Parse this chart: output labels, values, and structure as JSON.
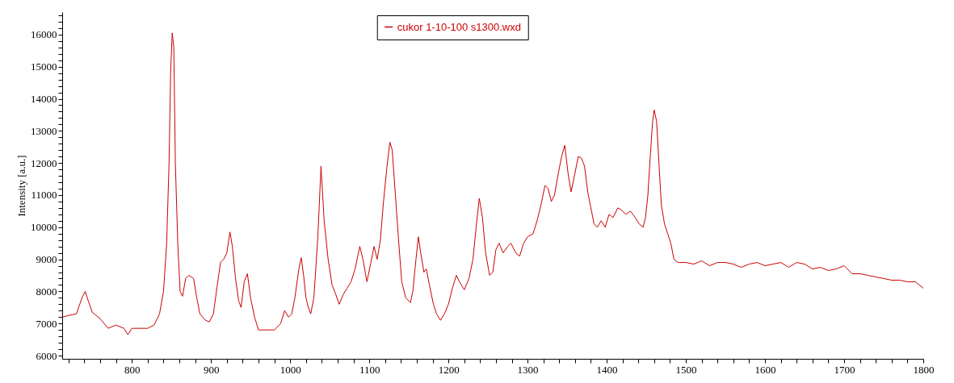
{
  "chart_data": {
    "type": "line",
    "ylabel": "Intensity [a.u.]",
    "grid": false,
    "legend": "top",
    "marker": "none",
    "line_style": "solid",
    "xlim": [
      712,
      1800
    ],
    "ylim": [
      5900,
      16700
    ],
    "xticks": [
      800,
      900,
      1000,
      1100,
      1200,
      1300,
      1400,
      1500,
      1600,
      1700,
      1800,
      {
        "value": 720,
        "label": null
      },
      {
        "value": 740,
        "label": null
      },
      {
        "value": 760,
        "label": null
      },
      {
        "value": 780,
        "label": null
      },
      {
        "value": 820,
        "label": null
      },
      {
        "value": 840,
        "label": null
      },
      {
        "value": 860,
        "label": null
      },
      {
        "value": 880,
        "label": null
      },
      {
        "value": 920,
        "label": null
      },
      {
        "value": 940,
        "label": null
      },
      {
        "value": 960,
        "label": null
      },
      {
        "value": 980,
        "label": null
      },
      {
        "value": 1020,
        "label": null
      },
      {
        "value": 1040,
        "label": null
      },
      {
        "value": 1060,
        "label": null
      },
      {
        "value": 1080,
        "label": null
      },
      {
        "value": 1120,
        "label": null
      },
      {
        "value": 1140,
        "label": null
      },
      {
        "value": 1160,
        "label": null
      },
      {
        "value": 1180,
        "label": null
      },
      {
        "value": 1220,
        "label": null
      },
      {
        "value": 1240,
        "label": null
      },
      {
        "value": 1260,
        "label": null
      },
      {
        "value": 1280,
        "label": null
      },
      {
        "value": 1320,
        "label": null
      },
      {
        "value": 1340,
        "label": null
      },
      {
        "value": 1360,
        "label": null
      },
      {
        "value": 1380,
        "label": null
      },
      {
        "value": 1420,
        "label": null
      },
      {
        "value": 1440,
        "label": null
      },
      {
        "value": 1460,
        "label": null
      },
      {
        "value": 1480,
        "label": null
      },
      {
        "value": 1520,
        "label": null
      },
      {
        "value": 1540,
        "label": null
      },
      {
        "value": 1560,
        "label": null
      },
      {
        "value": 1580,
        "label": null
      },
      {
        "value": 1620,
        "label": null
      },
      {
        "value": 1640,
        "label": null
      },
      {
        "value": 1660,
        "label": null
      },
      {
        "value": 1680,
        "label": null
      },
      {
        "value": 1720,
        "label": null
      },
      {
        "value": 1740,
        "label": null
      },
      {
        "value": 1760,
        "label": null
      },
      {
        "value": 1780,
        "label": null
      }
    ],
    "yticks": [
      6000,
      7000,
      8000,
      9000,
      10000,
      11000,
      12000,
      13000,
      14000,
      15000,
      16000,
      {
        "value": 6200,
        "label": null
      },
      {
        "value": 6400,
        "label": null
      },
      {
        "value": 6600,
        "label": null
      },
      {
        "value": 6800,
        "label": null
      },
      {
        "value": 7200,
        "label": null
      },
      {
        "value": 7400,
        "label": null
      },
      {
        "value": 7600,
        "label": null
      },
      {
        "value": 7800,
        "label": null
      },
      {
        "value": 8200,
        "label": null
      },
      {
        "value": 8400,
        "label": null
      },
      {
        "value": 8600,
        "label": null
      },
      {
        "value": 8800,
        "label": null
      },
      {
        "value": 9200,
        "label": null
      },
      {
        "value": 9400,
        "label": null
      },
      {
        "value": 9600,
        "label": null
      },
      {
        "value": 9800,
        "label": null
      },
      {
        "value": 10200,
        "label": null
      },
      {
        "value": 10400,
        "label": null
      },
      {
        "value": 10600,
        "label": null
      },
      {
        "value": 10800,
        "label": null
      },
      {
        "value": 11200,
        "label": null
      },
      {
        "value": 11400,
        "label": null
      },
      {
        "value": 11600,
        "label": null
      },
      {
        "value": 11800,
        "label": null
      },
      {
        "value": 12200,
        "label": null
      },
      {
        "value": 12400,
        "label": null
      },
      {
        "value": 12600,
        "label": null
      },
      {
        "value": 12800,
        "label": null
      },
      {
        "value": 13200,
        "label": null
      },
      {
        "value": 13400,
        "label": null
      },
      {
        "value": 13600,
        "label": null
      },
      {
        "value": 13800,
        "label": null
      },
      {
        "value": 14200,
        "label": null
      },
      {
        "value": 14400,
        "label": null
      },
      {
        "value": 14600,
        "label": null
      },
      {
        "value": 14800,
        "label": null
      },
      {
        "value": 15200,
        "label": null
      },
      {
        "value": 15400,
        "label": null
      },
      {
        "value": 15600,
        "label": null
      },
      {
        "value": 15800,
        "label": null
      },
      {
        "value": 16200,
        "label": null
      },
      {
        "value": 16400,
        "label": null
      },
      {
        "value": 16600,
        "label": null
      }
    ],
    "series": [
      {
        "name": "cukor 1-10-100 s1300.wxd",
        "color": "#cc0000",
        "x": [
          712,
          720,
          730,
          737,
          741,
          745,
          750,
          760,
          770,
          780,
          790,
          795,
          800,
          810,
          820,
          828,
          835,
          840,
          844,
          847,
          849,
          851,
          853,
          855,
          858,
          861,
          864,
          868,
          872,
          878,
          882,
          886,
          893,
          898,
          903,
          908,
          912,
          916,
          920,
          924,
          927,
          931,
          935,
          938,
          942,
          946,
          950,
          955,
          960,
          970,
          980,
          988,
          993,
          998,
          1002,
          1006,
          1011,
          1014,
          1017,
          1020,
          1023,
          1026,
          1030,
          1035,
          1039,
          1043,
          1048,
          1053,
          1057,
          1062,
          1067,
          1072,
          1077,
          1082,
          1088,
          1092,
          1097,
          1102,
          1106,
          1110,
          1114,
          1118,
          1122,
          1126,
          1129,
          1133,
          1137,
          1141,
          1146,
          1152,
          1155,
          1159,
          1162,
          1165,
          1169,
          1172,
          1176,
          1181,
          1185,
          1190,
          1195,
          1200,
          1205,
          1210,
          1214,
          1220,
          1226,
          1231,
          1235,
          1239,
          1243,
          1247,
          1252,
          1256,
          1260,
          1264,
          1269,
          1275,
          1279,
          1285,
          1290,
          1295,
          1300,
          1307,
          1312,
          1317,
          1322,
          1326,
          1330,
          1334,
          1339,
          1343,
          1347,
          1351,
          1355,
          1360,
          1364,
          1368,
          1372,
          1376,
          1380,
          1384,
          1388,
          1393,
          1398,
          1403,
          1408,
          1414,
          1418,
          1424,
          1430,
          1436,
          1441,
          1446,
          1449,
          1452,
          1455,
          1458,
          1460,
          1463,
          1466,
          1469,
          1473,
          1477,
          1481,
          1485,
          1490,
          1500,
          1510,
          1520,
          1530,
          1540,
          1550,
          1560,
          1570,
          1580,
          1590,
          1600,
          1610,
          1620,
          1630,
          1640,
          1650,
          1660,
          1670,
          1680,
          1690,
          1700,
          1710,
          1720,
          1730,
          1740,
          1750,
          1760,
          1770,
          1780,
          1790,
          1800
        ],
        "values": [
          7200,
          7250,
          7300,
          7800,
          8000,
          7700,
          7350,
          7150,
          6850,
          6950,
          6850,
          6650,
          6850,
          6850,
          6850,
          6950,
          7300,
          8000,
          9500,
          12000,
          14800,
          16050,
          15600,
          12000,
          9500,
          8000,
          7850,
          8400,
          8500,
          8400,
          7800,
          7300,
          7100,
          7050,
          7300,
          8200,
          8900,
          9000,
          9200,
          9850,
          9400,
          8400,
          7700,
          7500,
          8300,
          8550,
          7800,
          7200,
          6800,
          6800,
          6800,
          7000,
          7400,
          7200,
          7300,
          7800,
          8700,
          9050,
          8500,
          7800,
          7500,
          7300,
          7800,
          9700,
          11900,
          10200,
          9000,
          8200,
          7950,
          7600,
          7900,
          8100,
          8300,
          8700,
          9400,
          9000,
          8300,
          8900,
          9400,
          9000,
          9600,
          10800,
          11800,
          12650,
          12400,
          11000,
          9600,
          8300,
          7800,
          7650,
          8000,
          9000,
          9700,
          9200,
          8600,
          8700,
          8200,
          7600,
          7300,
          7100,
          7300,
          7600,
          8100,
          8500,
          8300,
          8050,
          8400,
          9000,
          10000,
          10900,
          10300,
          9200,
          8500,
          8600,
          9300,
          9500,
          9200,
          9400,
          9500,
          9200,
          9100,
          9500,
          9700,
          9800,
          10200,
          10700,
          11300,
          11200,
          10800,
          11000,
          11700,
          12200,
          12550,
          11700,
          11100,
          11700,
          12200,
          12150,
          11900,
          11100,
          10600,
          10100,
          10000,
          10200,
          10000,
          10400,
          10300,
          10600,
          10550,
          10400,
          10500,
          10300,
          10100,
          10000,
          10300,
          11000,
          12200,
          13300,
          13650,
          13300,
          12000,
          10700,
          10100,
          9800,
          9500,
          9000,
          8900,
          8900,
          8850,
          8950,
          8800,
          8900,
          8900,
          8850,
          8750,
          8850,
          8900,
          8800,
          8850,
          8900,
          8750,
          8900,
          8850,
          8700,
          8750,
          8650,
          8700,
          8800,
          8550,
          8550,
          8500,
          8450,
          8400,
          8350,
          8350,
          8300,
          8300,
          8100
        ]
      }
    ]
  }
}
